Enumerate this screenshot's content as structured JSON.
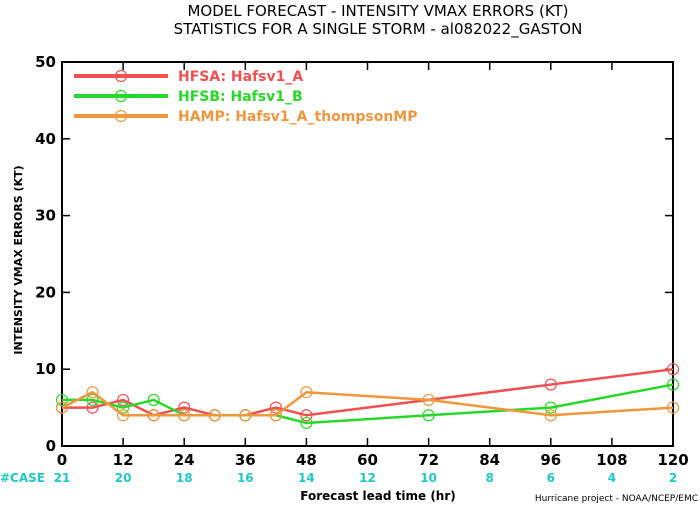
{
  "chart_data": {
    "type": "line",
    "title": "MODEL FORECAST - INTENSITY VMAX ERRORS (KT)",
    "subtitle": "STATISTICS FOR A SINGLE STORM - al082022_GASTON",
    "xlabel": "Forecast lead time (hr)",
    "ylabel": "INTENSITY VMAX ERRORS (KT)",
    "xlim": [
      0,
      120
    ],
    "ylim": [
      0,
      50
    ],
    "xticks": [
      0,
      12,
      24,
      36,
      48,
      60,
      72,
      84,
      96,
      108,
      120
    ],
    "yticks": [
      0,
      10,
      20,
      30,
      40,
      50
    ],
    "grid": false,
    "legend_position": "top-left",
    "series": [
      {
        "name": "HFSA: Hafsv1_A",
        "color": "#f05050",
        "x": [
          0,
          6,
          12,
          18,
          24,
          30,
          36,
          42,
          48,
          96,
          120
        ],
        "y": [
          5,
          5,
          6,
          4,
          5,
          4,
          4,
          5,
          4,
          8,
          10
        ]
      },
      {
        "name": "HFSB: Hafsv1_B",
        "color": "#28d828",
        "x": [
          0,
          6,
          12,
          18,
          24,
          30,
          36,
          42,
          48,
          72,
          96,
          120
        ],
        "y": [
          6,
          6,
          5,
          6,
          4,
          4,
          4,
          4,
          3,
          4,
          5,
          8
        ]
      },
      {
        "name": "HAMP: Hafsv1_A_thompsonMP",
        "color": "#f0963c",
        "x": [
          0,
          6,
          12,
          18,
          24,
          30,
          36,
          42,
          48,
          72,
          96,
          120
        ],
        "y": [
          5,
          7,
          4,
          4,
          4,
          4,
          4,
          4,
          7,
          6,
          4,
          5
        ]
      }
    ],
    "case_label": "#CASE",
    "case_counts": [
      {
        "x": 0,
        "n": "21"
      },
      {
        "x": 12,
        "n": "20"
      },
      {
        "x": 24,
        "n": "18"
      },
      {
        "x": 36,
        "n": "16"
      },
      {
        "x": 48,
        "n": "14"
      },
      {
        "x": 60,
        "n": "12"
      },
      {
        "x": 72,
        "n": "10"
      },
      {
        "x": 84,
        "n": "8"
      },
      {
        "x": 96,
        "n": "6"
      },
      {
        "x": 108,
        "n": "4"
      },
      {
        "x": 120,
        "n": "2"
      }
    ],
    "footer": "Hurricane project - NOAA/NCEP/EMC"
  }
}
